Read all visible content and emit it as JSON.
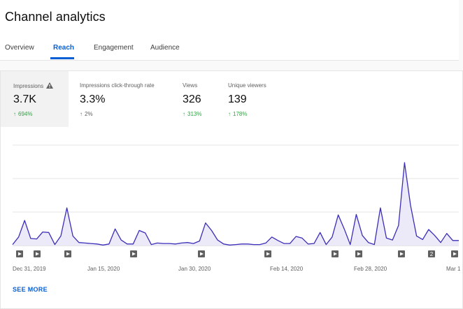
{
  "page": {
    "title": "Channel analytics"
  },
  "tabs": [
    {
      "label": "Overview",
      "active": false
    },
    {
      "label": "Reach",
      "active": true
    },
    {
      "label": "Engagement",
      "active": false
    },
    {
      "label": "Audience",
      "active": false
    }
  ],
  "metrics": [
    {
      "label": "Impressions",
      "value": "3.7K",
      "change": "694%",
      "trend": "up",
      "warning": true,
      "selected": true
    },
    {
      "label": "Impressions click-through rate",
      "value": "3.3%",
      "change": "2%",
      "trend": "neutral",
      "warning": false,
      "selected": false
    },
    {
      "label": "Views",
      "value": "326",
      "change": "313%",
      "trend": "up",
      "warning": false,
      "selected": false
    },
    {
      "label": "Unique viewers",
      "value": "139",
      "change": "178%",
      "trend": "up",
      "warning": false,
      "selected": false
    }
  ],
  "chart_data": {
    "type": "area",
    "series": [
      {
        "values": [
          2,
          17,
          50,
          14,
          13,
          27,
          26,
          2,
          19,
          75,
          19,
          6,
          5,
          4,
          3,
          1,
          3,
          33,
          11,
          3,
          3,
          30,
          25,
          2,
          5,
          4,
          4,
          3,
          5,
          6,
          4,
          9,
          45,
          30,
          11,
          3,
          1,
          2,
          3,
          3,
          2,
          2,
          5,
          17,
          10,
          4,
          4,
          18,
          15,
          3,
          4,
          26,
          2,
          17,
          61,
          33,
          2,
          62,
          20,
          6,
          2,
          75,
          15,
          11,
          40,
          165,
          80,
          19,
          12,
          32,
          20,
          6,
          24,
          10,
          10
        ]
      }
    ],
    "x_tick_labels": [
      "Dec 31, 2019",
      "Jan 15, 2020",
      "Jan 30, 2020",
      "Feb 14, 2020",
      "Feb 28, 2020",
      "Mar 1"
    ],
    "gridlines": 4,
    "grid": true,
    "colors": {
      "line": "#3b2eb8",
      "fill": "#ece9f8"
    }
  },
  "markers": [
    {
      "label": ""
    },
    {
      "label": ""
    },
    {
      "label": ""
    },
    {
      "label": ""
    },
    {
      "label": ""
    },
    {
      "label": ""
    },
    {
      "label": ""
    },
    {
      "label": ""
    },
    {
      "label": ""
    },
    {
      "label": "2"
    },
    {
      "label": ""
    }
  ],
  "footer": {
    "see_more": "SEE MORE"
  },
  "colors": {
    "accent": "#065fd4",
    "positive": "#2ba640"
  }
}
